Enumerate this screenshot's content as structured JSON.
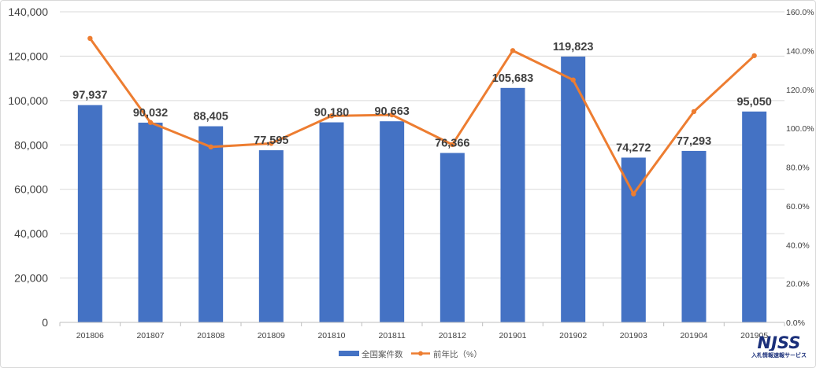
{
  "chart_data": {
    "type": "bar",
    "categories": [
      "201806",
      "201807",
      "201808",
      "201809",
      "201810",
      "201811",
      "201812",
      "201901",
      "201902",
      "201903",
      "201904",
      "201905"
    ],
    "series": [
      {
        "name": "全国案件数",
        "type": "bar",
        "axis": "left",
        "color": "#4472c4",
        "values": [
          97937,
          90032,
          88405,
          77595,
          90180,
          90663,
          76366,
          105683,
          119823,
          74272,
          77293,
          95050
        ],
        "labels": [
          "97,937",
          "90,032",
          "88,405",
          "77,595",
          "90,180",
          "90,663",
          "76,366",
          "105,683",
          "119,823",
          "74,272",
          "77,293",
          "95,050"
        ]
      },
      {
        "name": "前年比（%）",
        "type": "line",
        "axis": "right",
        "color": "#ed7d31",
        "values": [
          146.3,
          103.0,
          90.4,
          92.2,
          106.4,
          106.9,
          91.6,
          140.0,
          124.9,
          66.2,
          108.6,
          137.4
        ]
      }
    ],
    "yleft": {
      "ylim": [
        0,
        140000
      ],
      "ticks": [
        0,
        20000,
        40000,
        60000,
        80000,
        100000,
        120000,
        140000
      ],
      "tick_labels": [
        "0",
        "20,000",
        "40,000",
        "60,000",
        "80,000",
        "100,000",
        "120,000",
        "140,000"
      ]
    },
    "yright": {
      "ylim": [
        0,
        160
      ],
      "ticks": [
        0,
        20,
        40,
        60,
        80,
        100,
        120,
        140,
        160
      ],
      "tick_labels": [
        "0.0%",
        "20.0%",
        "40.0%",
        "60.0%",
        "80.0%",
        "100.0%",
        "120.0%",
        "140.0%",
        "160.0%"
      ]
    },
    "grid": true,
    "legend_position": "bottom-center"
  },
  "logo": {
    "mark": "NJSS",
    "tagline": "入札情報速報サービス"
  }
}
